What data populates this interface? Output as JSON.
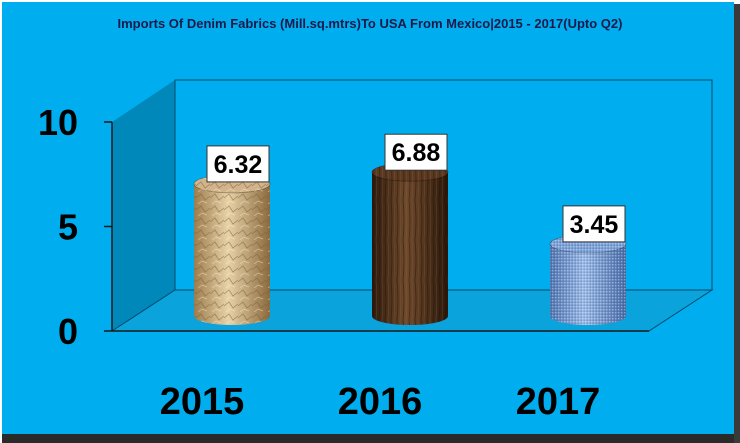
{
  "chart_data": {
    "type": "bar",
    "title": "Imports Of Denim Fabrics (Mill.sq.mtrs)To USA From Mexico|2015 - 2017(Upto Q2)",
    "categories": [
      "2015",
      "2016",
      "2017"
    ],
    "values": [
      6.32,
      6.88,
      3.45
    ],
    "data_labels": [
      "6.32",
      "6.88",
      "3.45"
    ],
    "ylim": [
      0,
      10
    ],
    "yticks": [
      "0",
      "5",
      "10"
    ],
    "xlabel": "",
    "ylabel": "",
    "grid": false,
    "legend": "none",
    "bar_shape": "3d-cylinder",
    "colors": {
      "background": "#00AEEF",
      "back_wall": "#00AEEF",
      "side_wall": "#0088BB",
      "floor": "#0AA3DB",
      "bars": [
        "#D2B48C",
        "#5C3A21",
        "#7EA3D8"
      ]
    }
  }
}
